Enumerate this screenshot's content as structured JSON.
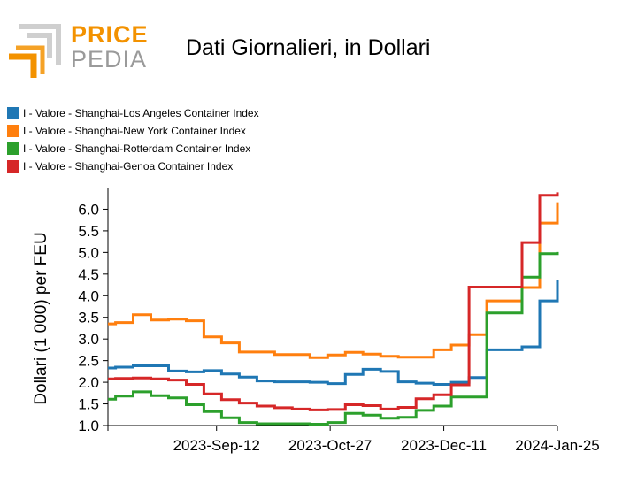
{
  "logo": {
    "text_line1": "PRICE",
    "text_line2": "PEDIA"
  },
  "colors": {
    "brand_orange": "#f39200",
    "brand_gray": "#9a9a9a"
  },
  "chart_data": {
    "type": "line",
    "title": "Dati Giornalieri, in Dollari",
    "xlabel": "",
    "ylabel": "Dollari (1 000) per FEU",
    "xlim": [
      "2023-07-31",
      "2024-01-25"
    ],
    "ylim": [
      1.0,
      6.5
    ],
    "yticks": [
      1.0,
      1.5,
      2.0,
      2.5,
      3.0,
      3.5,
      4.0,
      4.5,
      5.0,
      5.5,
      6.0
    ],
    "ytick_labels": [
      "1.0",
      "1.5",
      "2.0",
      "2.5",
      "3.0",
      "3.5",
      "4.0",
      "4.5",
      "5.0",
      "5.5",
      "6.0"
    ],
    "xticks": [
      "2023-07-31",
      "2023-09-12",
      "2023-10-27",
      "2023-12-11",
      "2024-01-25"
    ],
    "xtick_labels": [
      "",
      "2023-Sep-12",
      "2023-Oct-27",
      "2023-Dec-11",
      "2024-Jan-25"
    ],
    "legend_position": "top-left",
    "x": [
      "2023-07-31",
      "2023-08-03",
      "2023-08-10",
      "2023-08-17",
      "2023-08-24",
      "2023-08-31",
      "2023-09-07",
      "2023-09-14",
      "2023-09-21",
      "2023-09-28",
      "2023-10-05",
      "2023-10-12",
      "2023-10-19",
      "2023-10-26",
      "2023-11-02",
      "2023-11-09",
      "2023-11-16",
      "2023-11-23",
      "2023-11-30",
      "2023-12-07",
      "2023-12-14",
      "2023-12-21",
      "2023-12-28",
      "2024-01-04",
      "2024-01-11",
      "2024-01-18",
      "2024-01-25"
    ],
    "series": [
      {
        "name": "I - Valore - Shanghai-Los Angeles Container Index",
        "color": "#1f77b4",
        "values": [
          2.33,
          2.35,
          2.38,
          2.38,
          2.26,
          2.24,
          2.27,
          2.19,
          2.12,
          2.03,
          2.01,
          2.01,
          2.0,
          1.97,
          2.18,
          2.3,
          2.25,
          2.01,
          1.98,
          1.95,
          2.0,
          2.11,
          2.75,
          2.75,
          2.82,
          3.88,
          4.36
        ]
      },
      {
        "name": "I - Valore - Shanghai-New York Container Index",
        "color": "#ff7f0e",
        "values": [
          3.35,
          3.38,
          3.56,
          3.44,
          3.46,
          3.42,
          3.05,
          2.91,
          2.7,
          2.7,
          2.64,
          2.64,
          2.57,
          2.63,
          2.69,
          2.65,
          2.6,
          2.58,
          2.58,
          2.75,
          2.86,
          3.1,
          3.88,
          3.88,
          4.19,
          5.68,
          6.16
        ]
      },
      {
        "name": "I - Valore - Shanghai-Rotterdam Container Index",
        "color": "#2ca02c",
        "values": [
          1.61,
          1.68,
          1.78,
          1.69,
          1.64,
          1.48,
          1.32,
          1.18,
          1.07,
          1.04,
          1.04,
          1.04,
          1.03,
          1.07,
          1.28,
          1.24,
          1.17,
          1.19,
          1.35,
          1.45,
          1.66,
          1.66,
          3.6,
          3.6,
          4.43,
          4.97,
          5.01
        ]
      },
      {
        "name": "I - Valore - Shanghai-Genoa Container Index",
        "color": "#d62728",
        "values": [
          2.08,
          2.09,
          2.1,
          2.08,
          2.05,
          1.95,
          1.73,
          1.6,
          1.52,
          1.45,
          1.41,
          1.38,
          1.36,
          1.37,
          1.48,
          1.46,
          1.38,
          1.42,
          1.62,
          1.71,
          1.94,
          4.2,
          4.2,
          4.2,
          5.23,
          6.32,
          6.39
        ]
      }
    ]
  }
}
